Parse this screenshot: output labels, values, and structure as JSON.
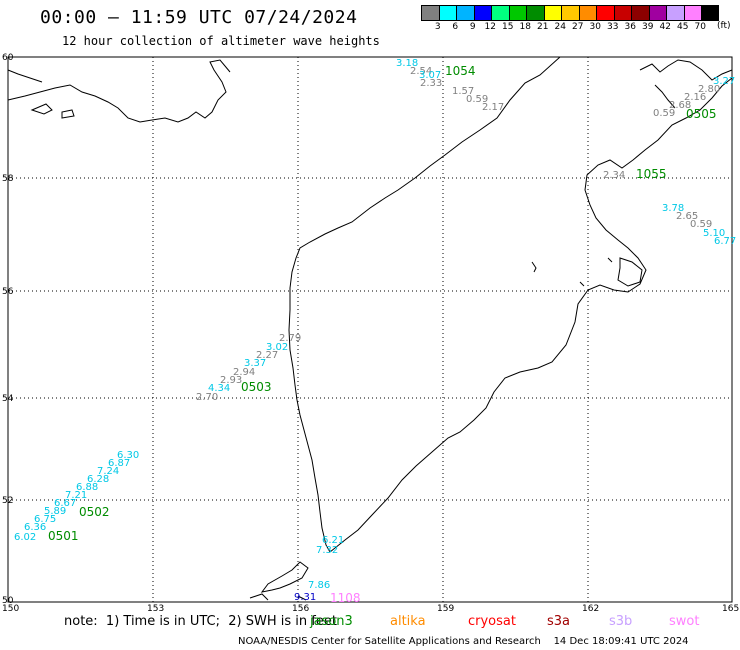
{
  "title": "00:00 — 11:59 UTC 07/24/2024",
  "subtitle": "12 hour collection of altimeter wave heights",
  "scale": {
    "unit": "(ft)",
    "bins": [
      {
        "label": "3",
        "color": "#808080"
      },
      {
        "label": "6",
        "color": "#00ffff"
      },
      {
        "label": "9",
        "color": "#00b4ff"
      },
      {
        "label": "12",
        "color": "#0000ff"
      },
      {
        "label": "15",
        "color": "#00ff80"
      },
      {
        "label": "18",
        "color": "#00c800"
      },
      {
        "label": "21",
        "color": "#008c00"
      },
      {
        "label": "24",
        "color": "#ffff00"
      },
      {
        "label": "27",
        "color": "#ffc800"
      },
      {
        "label": "30",
        "color": "#ff8c00"
      },
      {
        "label": "33",
        "color": "#ff0000"
      },
      {
        "label": "36",
        "color": "#c80000"
      },
      {
        "label": "39",
        "color": "#8c0000"
      },
      {
        "label": "42",
        "color": "#a000a0"
      },
      {
        "label": "45",
        "color": "#c8a0ff"
      },
      {
        "label": "70",
        "color": "#ff80ff"
      },
      {
        "label": "",
        "color": "#000000"
      }
    ]
  },
  "axes": {
    "lon_ticks": [
      "150",
      "153",
      "156",
      "159",
      "162",
      "165"
    ],
    "lat_ticks": [
      "60",
      "58",
      "56",
      "54",
      "52",
      "50"
    ]
  },
  "labels": {
    "times": [
      {
        "text": "1054",
        "color": "#008c00"
      },
      {
        "text": "0505",
        "color": "#008c00"
      },
      {
        "text": "1055",
        "color": "#008c00"
      },
      {
        "text": "0503",
        "color": "#008c00"
      },
      {
        "text": "0502",
        "color": "#008c00"
      },
      {
        "text": "0501",
        "color": "#008c00"
      },
      {
        "text": "1108",
        "color": "#ff80ff"
      }
    ],
    "swh": [
      {
        "text": "3.18",
        "color": "#00c8e6"
      },
      {
        "text": "2.54",
        "color": "#808080"
      },
      {
        "text": "3.07",
        "color": "#00c8e6"
      },
      {
        "text": "2.33",
        "color": "#808080"
      },
      {
        "text": "1.57",
        "color": "#808080"
      },
      {
        "text": "0.59",
        "color": "#808080"
      },
      {
        "text": "2.17",
        "color": "#808080"
      },
      {
        "text": "3.27",
        "color": "#00c8e6"
      },
      {
        "text": "2.80",
        "color": "#808080"
      },
      {
        "text": "2.16",
        "color": "#808080"
      },
      {
        "text": "2.68",
        "color": "#808080"
      },
      {
        "text": "0.59",
        "color": "#808080"
      },
      {
        "text": "2.34",
        "color": "#808080"
      },
      {
        "text": "3.78",
        "color": "#00c8e6"
      },
      {
        "text": "2.65",
        "color": "#808080"
      },
      {
        "text": "0.59",
        "color": "#808080"
      },
      {
        "text": "5.10",
        "color": "#00c8e6"
      },
      {
        "text": "6.77",
        "color": "#00c8e6"
      },
      {
        "text": "2.79",
        "color": "#808080"
      },
      {
        "text": "3.02",
        "color": "#00c8e6"
      },
      {
        "text": "2.27",
        "color": "#808080"
      },
      {
        "text": "3.37",
        "color": "#00c8e6"
      },
      {
        "text": "2.94",
        "color": "#808080"
      },
      {
        "text": "2.93",
        "color": "#808080"
      },
      {
        "text": "4.34",
        "color": "#00c8e6"
      },
      {
        "text": "2.70",
        "color": "#808080"
      },
      {
        "text": "6.21",
        "color": "#00c8e6"
      },
      {
        "text": "7.32",
        "color": "#00c8e6"
      },
      {
        "text": "7.86",
        "color": "#00c8e6"
      },
      {
        "text": "9.31",
        "color": "#0000c8"
      },
      {
        "text": "6.30",
        "color": "#00c8e6"
      },
      {
        "text": "6.87",
        "color": "#00c8e6"
      },
      {
        "text": "7.24",
        "color": "#00c8e6"
      },
      {
        "text": "6.28",
        "color": "#00c8e6"
      },
      {
        "text": "6.88",
        "color": "#00c8e6"
      },
      {
        "text": "7.21",
        "color": "#00c8e6"
      },
      {
        "text": "6.67",
        "color": "#00c8e6"
      },
      {
        "text": "5.89",
        "color": "#00c8e6"
      },
      {
        "text": "6.75",
        "color": "#00c8e6"
      },
      {
        "text": "6.36",
        "color": "#00c8e6"
      },
      {
        "text": "6.02",
        "color": "#00c8e6"
      }
    ]
  },
  "note": "note:  1) Time is in UTC;  2) SWH is in feet",
  "missions": [
    {
      "text": "jason3",
      "color": "#008c00"
    },
    {
      "text": "altika",
      "color": "#ff8c00"
    },
    {
      "text": "cryosat",
      "color": "#ff0000"
    },
    {
      "text": "s3a",
      "color": "#a00000"
    },
    {
      "text": "s3b",
      "color": "#c8a0ff"
    },
    {
      "text": "swot",
      "color": "#ff80ff"
    }
  ],
  "credit": "NOAA/NESDIS Center for Satellite Applications and Research    14 Dec 18:09:41 UTC 2024"
}
